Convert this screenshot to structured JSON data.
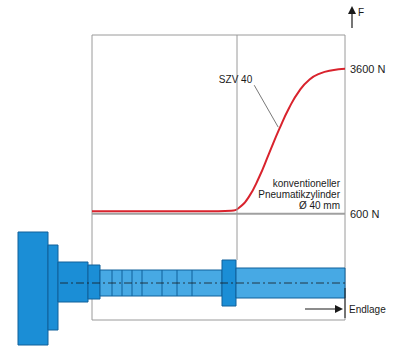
{
  "chart_data": {
    "type": "line",
    "xlabel": "Endlage",
    "ylabel": "F",
    "xlim": [
      0,
      100
    ],
    "ylim": [
      -1600,
      4300
    ],
    "yticks": [
      {
        "value": 600,
        "label": "600 N"
      },
      {
        "value": 3600,
        "label": "3600 N"
      }
    ],
    "tick_labels": "y",
    "grid": false,
    "series": [
      {
        "name": "SZV 40",
        "color": "#d9232d",
        "x": [
          0,
          10,
          20,
          30,
          40,
          50,
          55,
          58,
          62,
          66,
          70,
          74,
          78,
          82,
          86,
          90,
          95,
          100
        ],
        "values": [
          650,
          650,
          650,
          650,
          650,
          650,
          660,
          720,
          950,
          1350,
          1850,
          2350,
          2800,
          3150,
          3380,
          3500,
          3570,
          3600
        ]
      },
      {
        "name": "konventioneller Pneumatikzylinder Ø 40 mm",
        "color": "#a0a0a0",
        "x": [
          0,
          100
        ],
        "values": [
          600,
          600
        ]
      }
    ]
  }
}
